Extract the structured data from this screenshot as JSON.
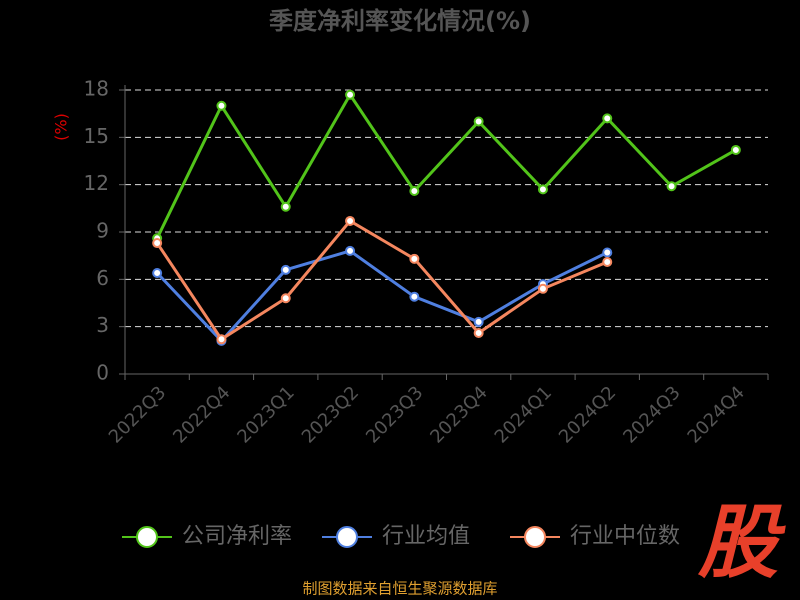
{
  "chart_data": {
    "type": "line",
    "title": "季度净利率变化情况(%)",
    "y_label": "(%)",
    "categories": [
      "2022Q3",
      "2022Q4",
      "2023Q1",
      "2023Q2",
      "2023Q3",
      "2023Q4",
      "2024Q1",
      "2024Q2",
      "2024Q3",
      "2024Q4"
    ],
    "series": [
      {
        "name": "公司净利率",
        "color": "#52c41a",
        "values": [
          8.6,
          17.0,
          10.6,
          17.7,
          11.6,
          16.0,
          11.7,
          16.2,
          11.9,
          14.2
        ]
      },
      {
        "name": "行业均值",
        "color": "#4f7fe0",
        "values": [
          6.4,
          2.1,
          6.6,
          7.8,
          4.9,
          3.3,
          5.7,
          7.7,
          null,
          null
        ]
      },
      {
        "name": "行业中位数",
        "color": "#f5875f",
        "values": [
          8.3,
          2.2,
          4.8,
          9.7,
          7.3,
          2.6,
          5.4,
          7.1,
          null,
          null
        ]
      }
    ],
    "ylim": [
      0,
      18
    ],
    "yticks": [
      0,
      3,
      6,
      9,
      12,
      15,
      18
    ],
    "grid": true,
    "source": "制图数据来自恒生聚源数据库",
    "logo": "股"
  }
}
